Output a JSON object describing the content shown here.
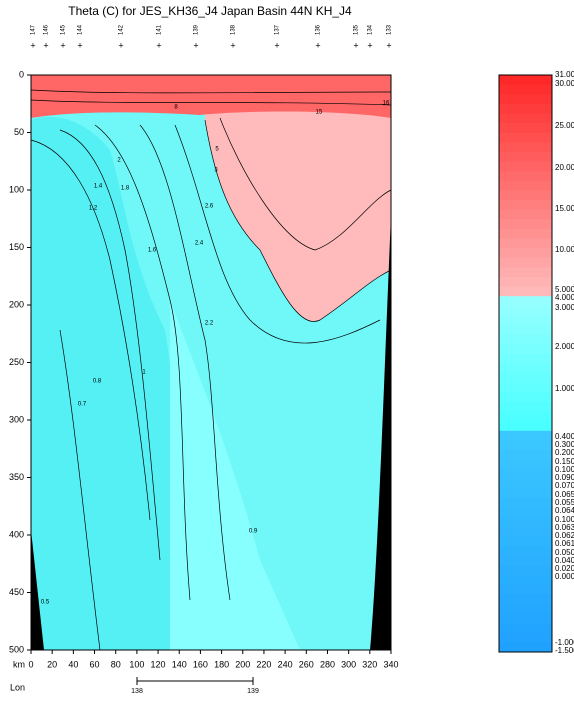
{
  "chart_data": {
    "type": "contour",
    "title": "Theta (C) for JES_KH36_J4 Japan Basin 44N KH_J4",
    "x_label": "km",
    "xlim": [
      0,
      340
    ],
    "xticks": [
      0,
      20,
      40,
      60,
      80,
      100,
      120,
      140,
      160,
      180,
      200,
      220,
      240,
      260,
      280,
      300,
      320,
      340
    ],
    "ylim": [
      0,
      500
    ],
    "yticks": [
      0,
      50,
      100,
      150,
      200,
      250,
      300,
      350,
      400,
      450,
      500
    ],
    "stations": [
      "147",
      "146",
      "145",
      "144",
      "142",
      "141",
      "139",
      "138",
      "137",
      "136",
      "135",
      "134",
      "133"
    ],
    "lon_label": "Lon",
    "lon_ticks": [
      138,
      139
    ],
    "colorbar_labels": [
      "31.000",
      "30.000",
      "25.000",
      "20.000",
      "15.000",
      "10.000",
      "5.000",
      "4.000",
      "3.000",
      "2.000",
      "1.000",
      "0.400",
      "0.300",
      "0.200",
      "0.150",
      "0.100",
      "0.090",
      "0.070",
      "0.065",
      "0.055",
      "0.064",
      "0.100",
      "0.063",
      "0.062",
      "0.061",
      "0.050",
      "0.040",
      "0.020",
      "0.000",
      "-1.000",
      "-1.500"
    ],
    "contour_labels": [
      16,
      15,
      8,
      5,
      3,
      2.2,
      2,
      1.4,
      1.8,
      1.2,
      1.6,
      2.6,
      2.4,
      1,
      0.8,
      0.7,
      0.9,
      0.5
    ]
  }
}
